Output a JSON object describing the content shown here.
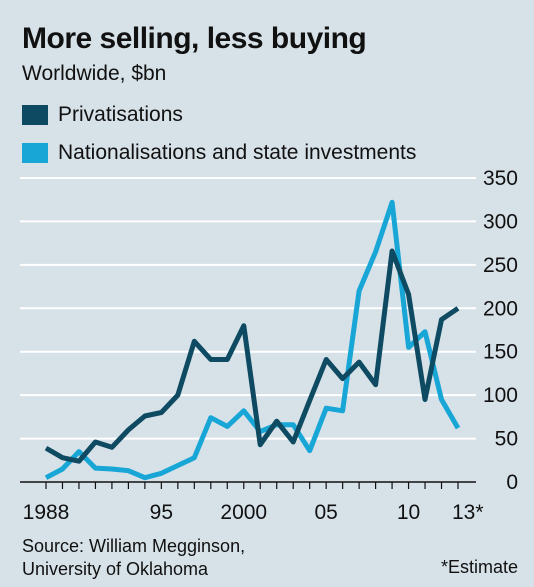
{
  "header": {
    "title": "More selling, less buying",
    "subtitle": "Worldwide, $bn"
  },
  "footer": {
    "source_line1": "Source: William Megginson,",
    "source_line2": "University of Oklahoma",
    "note": "*Estimate"
  },
  "chart_data": {
    "type": "line",
    "title": "More selling, less buying",
    "subtitle": "Worldwide, $bn",
    "xlabel": "",
    "ylabel": "",
    "ylim": [
      0,
      350
    ],
    "y_ticks": [
      0,
      50,
      100,
      150,
      200,
      250,
      300,
      350
    ],
    "x_tick_labels": [
      {
        "year": 1988,
        "label": "1988"
      },
      {
        "year": 1995,
        "label": "95"
      },
      {
        "year": 2000,
        "label": "2000"
      },
      {
        "year": 2005,
        "label": "05"
      },
      {
        "year": 2010,
        "label": "10"
      },
      {
        "year": 2013,
        "label": "13*"
      }
    ],
    "grid": true,
    "legend_position": "top-left",
    "x": [
      1988,
      1989,
      1990,
      1991,
      1992,
      1993,
      1994,
      1995,
      1996,
      1997,
      1998,
      1999,
      2000,
      2001,
      2002,
      2003,
      2004,
      2005,
      2006,
      2007,
      2008,
      2009,
      2010,
      2011,
      2012,
      2013
    ],
    "series": [
      {
        "name": "Privatisations",
        "color": "#0e4a61",
        "values": [
          39,
          28,
          24,
          46,
          40,
          60,
          76,
          80,
          100,
          162,
          141,
          141,
          180,
          43,
          70,
          46,
          94,
          141,
          119,
          138,
          112,
          266,
          216,
          95,
          187,
          200
        ]
      },
      {
        "name": "Nationalisations and state investments",
        "color": "#17a6d6",
        "values": [
          5,
          15,
          35,
          16,
          15,
          13,
          5,
          10,
          19,
          28,
          74,
          64,
          82,
          58,
          66,
          66,
          36,
          85,
          82,
          220,
          265,
          322,
          155,
          173,
          95,
          62
        ]
      }
    ]
  }
}
